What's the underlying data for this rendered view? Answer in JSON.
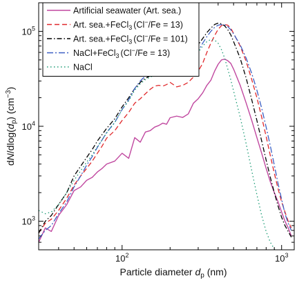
{
  "chart_data": {
    "type": "line",
    "x_scale": "log",
    "y_scale": "log",
    "xlabel": "Particle diameter d_p (nm)",
    "ylabel": "dN/dlog(d_p) (cm^-3)",
    "xlim": [
      30,
      1200
    ],
    "ylim": [
      500,
      200000
    ],
    "x_ticks": [
      100,
      1000
    ],
    "x_tick_labels": [
      "10^2",
      "10^3"
    ],
    "y_ticks": [
      1000,
      10000,
      100000
    ],
    "y_tick_labels": [
      "10^3",
      "10^4",
      "10^5"
    ],
    "legend_position": "top-right",
    "grid": false,
    "series": [
      {
        "name": "Artificial seawater (Art. sea.)",
        "color": "#c0479f",
        "dash": "solid",
        "x": [
          30,
          33,
          36,
          40,
          45,
          50,
          55,
          60,
          65,
          70,
          75,
          80,
          90,
          100,
          110,
          120,
          130,
          140,
          150,
          160,
          170,
          180,
          190,
          200,
          220,
          240,
          260,
          280,
          300,
          320,
          340,
          360,
          380,
          400,
          420,
          440,
          460,
          480,
          500,
          550,
          600,
          650,
          700,
          750,
          800,
          850,
          900,
          950,
          1000,
          1050,
          1100,
          1150
        ],
        "y": [
          600,
          850,
          780,
          1150,
          1500,
          2100,
          2300,
          2700,
          2900,
          3300,
          3600,
          4000,
          4300,
          5200,
          4600,
          7600,
          6800,
          8700,
          9000,
          9800,
          10200,
          10800,
          10500,
          12300,
          12800,
          12400,
          13500,
          17500,
          19500,
          22500,
          27000,
          30500,
          38000,
          45000,
          50000,
          51000,
          49000,
          46000,
          40000,
          27000,
          17500,
          11500,
          7600,
          5200,
          3600,
          2600,
          2000,
          1600,
          1250,
          1000,
          850,
          700
        ]
      },
      {
        "name": "Art. sea.+FeCl3 (Cl−/Fe = 13)",
        "color": "#e0272a",
        "dash": "dashed",
        "x": [
          30,
          33,
          36,
          40,
          45,
          50,
          55,
          60,
          65,
          70,
          75,
          80,
          90,
          100,
          110,
          120,
          130,
          140,
          150,
          160,
          170,
          180,
          190,
          200,
          220,
          240,
          260,
          280,
          300,
          320,
          340,
          360,
          380,
          400,
          420,
          440,
          460,
          480,
          500,
          550,
          600,
          650,
          700,
          750,
          800,
          850,
          900,
          950,
          1000,
          1050,
          1100,
          1150
        ],
        "y": [
          750,
          950,
          1050,
          1300,
          1750,
          2400,
          3000,
          3600,
          4300,
          5200,
          6200,
          7500,
          9000,
          11500,
          14000,
          17500,
          19500,
          22000,
          24500,
          26500,
          27000,
          26500,
          27500,
          29000,
          26000,
          27000,
          29000,
          33000,
          38000,
          46000,
          60000,
          75000,
          90000,
          105000,
          115000,
          118000,
          116000,
          108000,
          95000,
          70000,
          48000,
          31000,
          20000,
          12500,
          7800,
          4900,
          3200,
          2200,
          1600,
          1250,
          1000,
          850
        ]
      },
      {
        "name": "Art. sea.+FeCl3 (Cl−/Fe = 101)",
        "color": "#000000",
        "dash": "dashdot",
        "x": [
          30,
          33,
          36,
          40,
          45,
          50,
          55,
          60,
          65,
          70,
          75,
          80,
          90,
          100,
          110,
          120,
          130,
          140,
          150,
          160,
          170,
          180,
          190,
          200,
          220,
          240,
          260,
          280,
          300,
          320,
          340,
          360,
          380,
          400,
          420,
          440,
          460,
          480,
          500,
          550,
          600,
          650,
          700,
          750,
          800,
          850,
          900,
          950,
          1000,
          1050,
          1100,
          1150
        ],
        "y": [
          750,
          1000,
          1150,
          1500,
          2000,
          3000,
          3800,
          4700,
          5700,
          7000,
          8200,
          9500,
          12000,
          16000,
          20000,
          25000,
          29000,
          32000,
          34000,
          35500,
          36000,
          36500,
          37500,
          38500,
          39000,
          44000,
          52000,
          62000,
          72000,
          84000,
          97000,
          108000,
          118000,
          122000,
          120000,
          114000,
          104000,
          92000,
          78000,
          52000,
          32000,
          19000,
          11500,
          7000,
          4400,
          2900,
          2000,
          1450,
          1100,
          900,
          780,
          680
        ]
      },
      {
        "name": "NaCl+FeCl3 (Cl−/Fe = 13)",
        "color": "#3b5fc4",
        "dash": "longdashdot",
        "x": [
          30,
          33,
          36,
          40,
          45,
          50,
          55,
          60,
          65,
          70,
          75,
          80,
          90,
          100,
          110,
          120,
          130,
          140,
          150,
          160,
          170,
          180,
          190,
          200,
          220,
          240,
          260,
          280,
          300,
          320,
          340,
          360,
          380,
          400,
          420,
          440,
          460,
          480,
          500,
          550,
          600,
          650,
          700,
          750,
          800,
          850,
          900,
          950,
          1000,
          1050,
          1100,
          1150
        ],
        "y": [
          650,
          800,
          900,
          1200,
          1600,
          2300,
          3000,
          3900,
          4800,
          6000,
          7200,
          8600,
          11000,
          15000,
          19000,
          25000,
          30000,
          34000,
          37000,
          39000,
          40000,
          39000,
          40000,
          41000,
          37000,
          38000,
          43000,
          52000,
          62000,
          75000,
          88000,
          100000,
          110000,
          116000,
          118000,
          117000,
          112000,
          104000,
          94000,
          72000,
          52000,
          36000,
          24000,
          15500,
          9800,
          6200,
          3900,
          2500,
          1700,
          1200,
          950,
          800
        ]
      },
      {
        "name": "NaCl",
        "color": "#1a9a74",
        "dash": "dotted",
        "x": [
          30,
          33,
          36,
          40,
          45,
          50,
          55,
          60,
          65,
          70,
          75,
          80,
          90,
          100,
          110,
          120,
          130,
          140,
          150,
          160,
          170,
          180,
          190,
          200,
          220,
          240,
          260,
          280,
          300,
          320,
          340,
          360,
          380,
          400,
          420,
          440,
          460,
          480,
          500,
          550,
          600,
          650,
          700,
          750,
          800,
          850,
          900,
          950,
          1000
        ],
        "y": [
          1300,
          1200,
          1250,
          1500,
          2000,
          2700,
          3400,
          4200,
          5000,
          6100,
          7200,
          8500,
          11000,
          15000,
          18500,
          24000,
          28000,
          31000,
          33000,
          34500,
          34000,
          34000,
          35000,
          36000,
          34000,
          36000,
          41000,
          50000,
          60000,
          70000,
          78000,
          82000,
          81000,
          75000,
          64000,
          52000,
          40000,
          31000,
          23500,
          12500,
          6500,
          3400,
          1900,
          1150,
          780,
          600,
          510,
          460,
          420
        ]
      }
    ]
  },
  "legend": {
    "entries": [
      {
        "prefix": "Artificial seawater (Art. sea.)",
        "chem": "",
        "ratio": ""
      },
      {
        "prefix": "Art. sea.+FeCl",
        "chem": "3",
        "ratio": "(Cl",
        "ratio_sup": "−",
        "ratio_tail": "/Fe = 13)"
      },
      {
        "prefix": "Art. sea.+FeCl",
        "chem": "3",
        "ratio": "(Cl",
        "ratio_sup": "−",
        "ratio_tail": "/Fe = 101)"
      },
      {
        "prefix": "NaCl+FeCl",
        "chem": "3",
        "ratio": "(Cl",
        "ratio_sup": "−",
        "ratio_tail": "/Fe = 13)"
      },
      {
        "prefix": "NaCl",
        "chem": "",
        "ratio": ""
      }
    ]
  },
  "axes": {
    "x_title_prefix": "Particle diameter ",
    "x_title_var": "d",
    "x_title_sub": "p",
    "x_title_unit": " (nm)",
    "y_title_a": "d",
    "y_title_N": "N",
    "y_title_b": "/dlog(",
    "y_title_var": "d",
    "y_title_sub": "p",
    "y_title_c": ") (cm",
    "y_title_sup": "−3",
    "y_title_d": ")",
    "x_tick_base": "10",
    "x_tick_exps": [
      "2",
      "3"
    ],
    "y_tick_base": "10",
    "y_tick_exps": [
      "3",
      "4",
      "5"
    ]
  }
}
